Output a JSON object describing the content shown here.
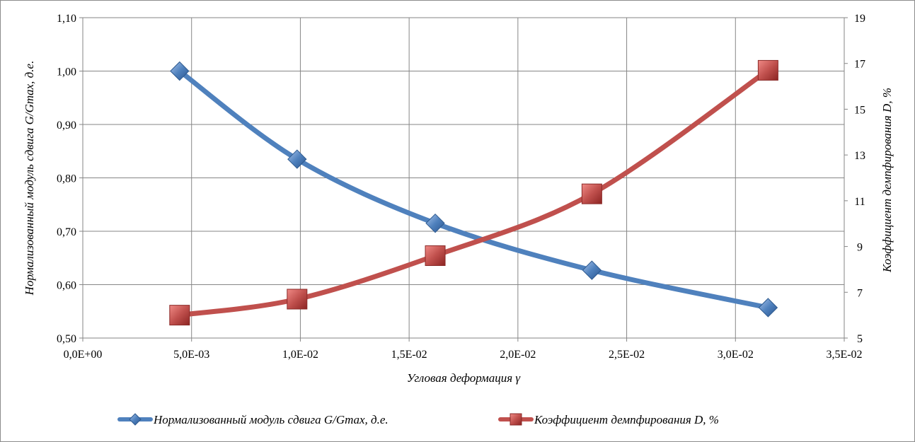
{
  "chart_data": {
    "type": "line",
    "x": [
      0.00445,
      0.00985,
      0.0162,
      0.0234,
      0.0315
    ],
    "x_ticks": [
      "0,0E+00",
      "5,0E-03",
      "1,0E-02",
      "1,5E-02",
      "2,0E-02",
      "2,5E-02",
      "3,0E-02",
      "3,5E-02"
    ],
    "x_tick_values": [
      0,
      0.005,
      0.01,
      0.015,
      0.02,
      0.025,
      0.03,
      0.035
    ],
    "xlim": [
      0,
      0.035
    ],
    "xlabel": "Угловая деформация γ",
    "ylabel_left": "Нормализованный модуль сдвига G/Gmax, д.е.",
    "ylabel_right": "Коэффициент демпфирования D, %",
    "ylim_left": [
      0.5,
      1.1
    ],
    "y_ticks_left": [
      "0,50",
      "0,60",
      "0,70",
      "0,80",
      "0,90",
      "1,00",
      "1,10"
    ],
    "y_tick_values_left": [
      0.5,
      0.6,
      0.7,
      0.8,
      0.9,
      1.0,
      1.1
    ],
    "ylim_right": [
      5,
      19
    ],
    "y_ticks_right": [
      "5",
      "7",
      "9",
      "11",
      "13",
      "15",
      "17",
      "19"
    ],
    "y_tick_values_right": [
      5,
      7,
      9,
      11,
      13,
      15,
      17,
      19
    ],
    "grid": true,
    "legend_position": "bottom",
    "series": [
      {
        "name": "Нормализованный модуль сдвига G/Gmax, д.е.",
        "axis": "left",
        "marker": "diamond",
        "color": "#4f81bd",
        "values": [
          1.0,
          0.835,
          0.715,
          0.627,
          0.557
        ]
      },
      {
        "name": "Коэффициент демпфирования D, %",
        "axis": "right",
        "marker": "square",
        "color": "#c0504d",
        "values": [
          6.0,
          6.7,
          8.6,
          11.3,
          16.7
        ]
      }
    ]
  }
}
